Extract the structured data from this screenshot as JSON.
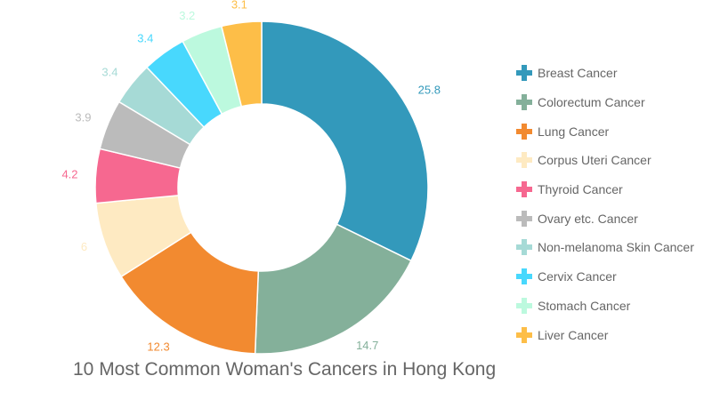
{
  "chart_data": {
    "type": "pie",
    "variant": "donut",
    "title": "10 Most Common Woman's Cancers in Hong Kong",
    "categories": [
      "Breast Cancer",
      "Colorectum Cancer",
      "Lung Cancer",
      "Corpus Uteri Cancer",
      "Thyroid Cancer",
      "Ovary etc. Cancer",
      "Non-melanoma Skin Cancer",
      "Cervix Cancer",
      "Stomach Cancer",
      "Liver Cancer"
    ],
    "values": [
      25.8,
      14.7,
      12.3,
      6,
      4.2,
      3.9,
      3.4,
      3.4,
      3.2,
      3.1
    ],
    "value_labels": [
      "25.8",
      "14.7",
      "12.3",
      "6",
      "4.2",
      "3.9",
      "3.4",
      "3.4",
      "3.2",
      "3.1"
    ],
    "colors": [
      "#3399bb",
      "#84b09a",
      "#f28a30",
      "#feeac2",
      "#f66890",
      "#bbbbbb",
      "#a6dad6",
      "#48d8fd",
      "#bcf9de",
      "#fdbe48"
    ],
    "legend_position": "right",
    "start_angle": "12 o'clock",
    "direction": "clockwise"
  },
  "title": "10 Most Common Woman's Cancers in Hong Kong",
  "legend": {
    "items": [
      {
        "label": "Breast Cancer",
        "color": "#3399bb"
      },
      {
        "label": "Colorectum Cancer",
        "color": "#84b09a"
      },
      {
        "label": "Lung Cancer",
        "color": "#f28a30"
      },
      {
        "label": "Corpus Uteri Cancer",
        "color": "#feeac2"
      },
      {
        "label": "Thyroid Cancer",
        "color": "#f66890"
      },
      {
        "label": "Ovary etc. Cancer",
        "color": "#bbbbbb"
      },
      {
        "label": "Non-melanoma Skin Cancer",
        "color": "#a6dad6"
      },
      {
        "label": "Cervix Cancer",
        "color": "#48d8fd"
      },
      {
        "label": "Stomach Cancer",
        "color": "#bcf9de"
      },
      {
        "label": "Liver Cancer",
        "color": "#fdbe48"
      }
    ]
  }
}
